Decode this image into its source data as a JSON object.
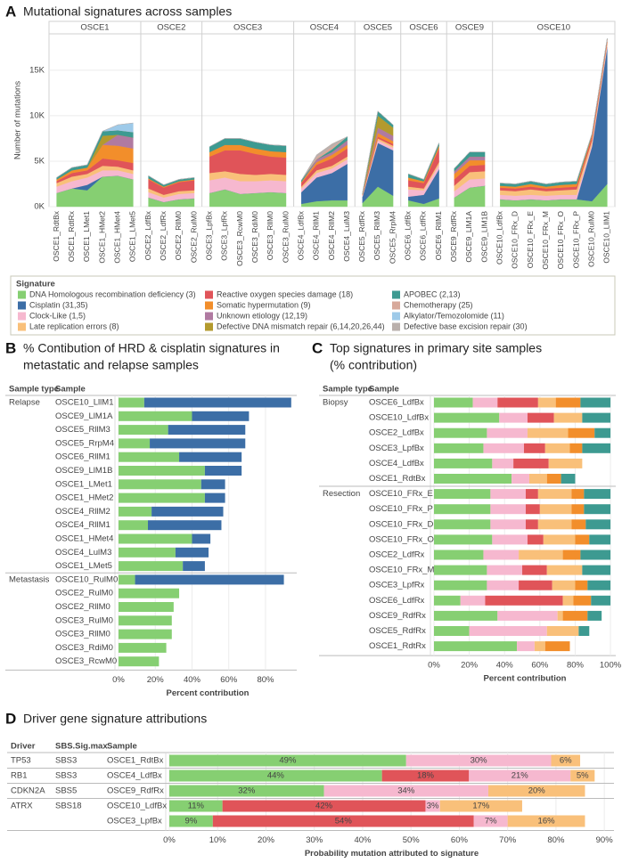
{
  "chart_data": [
    {
      "type": "area",
      "panel": "A",
      "title": "Mutational signatures across samples",
      "ylabel": "Number of mutations",
      "facets": [
        "OSCE1",
        "OSCE2",
        "OSCE3",
        "OSCE4",
        "OSCE5",
        "OSCE6",
        "OSCE9",
        "OSCE10"
      ],
      "categories": [
        "OSCE1_RdtBx",
        "OSCE1_RdtRx",
        "OSCE1_LMet1",
        "OSCE1_HMet2",
        "OSCE1_HMet4",
        "OSCE1_LMet5",
        "OSCE2_LdfBx",
        "OSCE2_LdfRx",
        "OSCE2_RllM0",
        "OSCE2_RulM0",
        "OSCE3_LpfBx",
        "OSCE3_LpfRx",
        "OSCE3_RcwM0",
        "OSCE3_RdiM0",
        "OSCE3_RllM0",
        "OSCE3_RulM0",
        "OSCE4_LdfBx",
        "OSCE4_RllM1",
        "OSCE4_RllM2",
        "OSCE4_LulM3",
        "OSCE5_RdfRx",
        "OSCE5_RllM3",
        "OSCE5_RrpM4",
        "OSCE6_LdfBx",
        "OSCE6_LdfRx",
        "OSCE6_RllM1",
        "OSCE9_RdfRx",
        "OSCE9_LlM1A",
        "OSCE9_LlM1B",
        "OSCE10_LdfBx",
        "OSCE10_FRx_D",
        "OSCE10_FRx_E",
        "OSCE10_FRx_M",
        "OSCE10_FRx_O",
        "OSCE10_FRx_P",
        "OSCE10_RulM0",
        "OSCE10_LllM1"
      ],
      "legend_title": "Signature",
      "series": [
        {
          "name": "DNA Homologous recombination deficiency (3)",
          "color": "#86cf72",
          "values": [
            1500,
            2000,
            1800,
            3300,
            3400,
            3000,
            1000,
            500,
            800,
            900,
            1500,
            1900,
            1400,
            1500,
            1600,
            1500,
            300,
            600,
            700,
            700,
            400,
            2200,
            1200,
            700,
            300,
            900,
            1000,
            2100,
            2300,
            800,
            700,
            800,
            700,
            800,
            800,
            600,
            2500
          ]
        },
        {
          "name": "Cisplatin (31,35)",
          "color": "#3c6ea6",
          "values": [
            0,
            0,
            600,
            0,
            0,
            0,
            0,
            0,
            0,
            0,
            0,
            0,
            0,
            0,
            0,
            0,
            1300,
            2600,
            3000,
            4000,
            700,
            4800,
            5000,
            400,
            1000,
            3200,
            0,
            0,
            0,
            0,
            0,
            0,
            0,
            0,
            0,
            6000,
            15000
          ]
        },
        {
          "name": "Clock-Like (1,5)",
          "color": "#f6b8cf",
          "values": [
            700,
            800,
            800,
            700,
            600,
            600,
            600,
            500,
            600,
            600,
            1400,
            1300,
            1400,
            1300,
            1300,
            1300,
            400,
            500,
            500,
            500,
            100,
            300,
            300,
            800,
            500,
            500,
            700,
            900,
            800,
            500,
            500,
            500,
            500,
            500,
            500,
            300,
            300
          ]
        },
        {
          "name": "Late replication errors (8)",
          "color": "#f9c07a",
          "values": [
            400,
            500,
            400,
            500,
            400,
            400,
            400,
            300,
            300,
            300,
            800,
            700,
            800,
            700,
            700,
            700,
            200,
            300,
            300,
            300,
            100,
            200,
            200,
            300,
            200,
            300,
            600,
            800,
            800,
            500,
            500,
            600,
            500,
            500,
            600,
            400,
            300
          ]
        },
        {
          "name": "Reactive oxygen species damage (18)",
          "color": "#e05459",
          "values": [
            200,
            400,
            400,
            800,
            700,
            800,
            1000,
            800,
            1000,
            1100,
            1800,
            2300,
            2600,
            2300,
            1900,
            1900,
            400,
            600,
            800,
            900,
            100,
            200,
            200,
            700,
            600,
            1500,
            700,
            700,
            700,
            300,
            300,
            300,
            300,
            300,
            300,
            400,
            200
          ]
        },
        {
          "name": "Somatic hypermutation (9)",
          "color": "#f28e2b",
          "values": [
            200,
            300,
            300,
            1500,
            1600,
            1600,
            100,
            100,
            100,
            100,
            500,
            600,
            600,
            600,
            600,
            600,
            100,
            300,
            400,
            400,
            0,
            400,
            300,
            300,
            200,
            300,
            600,
            600,
            500,
            200,
            200,
            300,
            200,
            300,
            300,
            200,
            100
          ]
        },
        {
          "name": "Unknown etiology (12,19)",
          "color": "#b07aa1",
          "values": [
            0,
            0,
            0,
            0,
            1200,
            1200,
            0,
            0,
            0,
            0,
            0,
            0,
            0,
            0,
            0,
            0,
            0,
            300,
            300,
            500,
            0,
            600,
            600,
            0,
            0,
            0,
            300,
            400,
            400,
            0,
            0,
            0,
            0,
            0,
            0,
            0,
            0
          ]
        },
        {
          "name": "Defective DNA mismatch repair (6,14,20,26,44)",
          "color": "#b39a2e",
          "values": [
            0,
            0,
            0,
            1000,
            0,
            0,
            0,
            0,
            0,
            0,
            0,
            0,
            0,
            0,
            0,
            0,
            0,
            0,
            0,
            0,
            0,
            1300,
            900,
            0,
            0,
            0,
            0,
            0,
            0,
            0,
            0,
            0,
            0,
            0,
            0,
            0,
            0
          ]
        },
        {
          "name": "APOBEC (2,13)",
          "color": "#3d9a91",
          "values": [
            200,
            300,
            300,
            500,
            500,
            600,
            300,
            200,
            200,
            200,
            600,
            700,
            700,
            700,
            700,
            700,
            200,
            0,
            300,
            400,
            100,
            500,
            300,
            400,
            200,
            300,
            300,
            500,
            500,
            300,
            300,
            300,
            300,
            300,
            300,
            100,
            100
          ]
        },
        {
          "name": "Chemotherapy (25)",
          "color": "#d7a99b",
          "values": [
            0,
            0,
            0,
            0,
            0,
            0,
            0,
            0,
            0,
            0,
            0,
            0,
            0,
            0,
            0,
            0,
            0,
            300,
            300,
            0,
            0,
            0,
            0,
            0,
            0,
            0,
            0,
            0,
            0,
            0,
            0,
            0,
            0,
            0,
            0,
            0,
            0
          ]
        },
        {
          "name": "Alkylator/Temozolomide (11)",
          "color": "#9ecae9",
          "values": [
            0,
            0,
            0,
            0,
            600,
            1000,
            0,
            0,
            0,
            0,
            0,
            0,
            0,
            0,
            0,
            0,
            0,
            0,
            0,
            0,
            0,
            0,
            0,
            0,
            0,
            0,
            0,
            0,
            0,
            0,
            0,
            0,
            0,
            0,
            0,
            0,
            0
          ]
        },
        {
          "name": "Defective base excision repair (30)",
          "color": "#bab0ac",
          "values": [
            0,
            0,
            0,
            0,
            0,
            0,
            0,
            0,
            0,
            0,
            0,
            0,
            0,
            0,
            0,
            0,
            0,
            200,
            300,
            0,
            0,
            0,
            0,
            0,
            0,
            0,
            0,
            0,
            0,
            0,
            0,
            0,
            0,
            0,
            0,
            0,
            0
          ]
        }
      ],
      "ylim": [
        0,
        19000
      ],
      "yticks": [
        {
          "value": 0,
          "label": "0K"
        },
        {
          "value": 5000,
          "label": "5K"
        },
        {
          "value": 10000,
          "label": "10K"
        },
        {
          "value": 15000,
          "label": "15K"
        }
      ],
      "grid": true
    },
    {
      "type": "hbar",
      "panel": "B",
      "title": [
        "% Contibution of HRD & cisplatin signatures in",
        "metastatic and relapse samples"
      ],
      "column_headers": [
        "Sample type",
        "Sample"
      ],
      "sample_type": [
        "Relapse",
        null,
        null,
        null,
        null,
        null,
        null,
        null,
        null,
        null,
        null,
        null,
        null,
        "Metastasis",
        null,
        null,
        null,
        null,
        null,
        null
      ],
      "categories": [
        "OSCE10_LllM1",
        "OSCE9_LlM1A",
        "OSCE5_RllM3",
        "OSCE5_RrpM4",
        "OSCE6_RllM1",
        "OSCE9_LlM1B",
        "OSCE1_LMet1",
        "OSCE1_HMet2",
        "OSCE4_RllM2",
        "OSCE4_RllM1",
        "OSCE1_HMet4",
        "OSCE4_LulM3",
        "OSCE1_LMet5",
        "OSCE10_RulM0",
        "OSCE2_RulM0",
        "OSCE2_RllM0",
        "OSCE3_RulM0",
        "OSCE3_RllM0",
        "OSCE3_RdiM0",
        "OSCE3_RcwM0"
      ],
      "series": [
        {
          "color": "#86cf72",
          "values": [
            14,
            40,
            27,
            17,
            33,
            47,
            45,
            47,
            18,
            16,
            40,
            31,
            35,
            9,
            33,
            30,
            29,
            29,
            26,
            22
          ]
        },
        {
          "color": "#3c6ea6",
          "values": [
            80,
            31,
            42,
            52,
            34,
            20,
            13,
            11,
            39,
            40,
            10,
            18,
            12,
            81,
            0,
            0,
            0,
            0,
            0,
            0
          ]
        }
      ],
      "xlim": [
        0,
        97
      ],
      "xticks": [
        {
          "value": 0,
          "label": "0%"
        },
        {
          "value": 20,
          "label": "20%"
        },
        {
          "value": 40,
          "label": "40%"
        },
        {
          "value": 60,
          "label": "60%"
        },
        {
          "value": 80,
          "label": "80%"
        }
      ],
      "xlabel": "Percent contribution",
      "grid": true
    },
    {
      "type": "hbar",
      "panel": "C",
      "title": [
        "Top signatures in primary site samples",
        "(% contribution)"
      ],
      "column_headers": [
        "Sample type",
        "Sample"
      ],
      "sample_type": [
        "Biopsy",
        null,
        null,
        null,
        null,
        null,
        "Resection",
        null,
        null,
        null,
        null,
        null,
        null,
        null,
        null,
        null,
        null
      ],
      "categories": [
        "OSCE6_LdfBx",
        "OSCE10_LdfBx",
        "OSCE2_LdfBx",
        "OSCE3_LpfBx",
        "OSCE4_LdfBx",
        "OSCE1_RdtBx",
        "OSCE10_FRx_E",
        "OSCE10_FRx_P",
        "OSCE10_FRx_D",
        "OSCE10_FRx_O",
        "OSCE2_LdfRx",
        "OSCE10_FRx_M",
        "OSCE3_LpfRx",
        "OSCE6_LdfRx",
        "OSCE9_RdfRx",
        "OSCE5_RdfRx",
        "OSCE1_RdtRx"
      ],
      "series": [
        {
          "color": "#86cf72",
          "values": [
            22,
            37,
            30,
            28,
            33,
            44,
            32,
            32,
            32,
            33,
            28,
            30,
            30,
            15,
            36,
            20,
            47
          ]
        },
        {
          "color": "#f6b8cf",
          "values": [
            14,
            16,
            23,
            23,
            12,
            10,
            20,
            20,
            20,
            20,
            20,
            20,
            18,
            14,
            34,
            44,
            10
          ]
        },
        {
          "color": "#e05459",
          "values": [
            23,
            15,
            0,
            12,
            20,
            0,
            7,
            8,
            7,
            9,
            0,
            14,
            19,
            44,
            0,
            0,
            0
          ]
        },
        {
          "color": "#f9c07a",
          "values": [
            10,
            16,
            23,
            14,
            19,
            10,
            19,
            18,
            19,
            18,
            25,
            20,
            13,
            6,
            3,
            18,
            6
          ]
        },
        {
          "color": "#f28e2b",
          "values": [
            14,
            0,
            15,
            7,
            0,
            8,
            7,
            7,
            8,
            8,
            10,
            0,
            7,
            10,
            14,
            0,
            14
          ]
        },
        {
          "color": "#3d9a91",
          "values": [
            17,
            16,
            9,
            16,
            0,
            8,
            15,
            15,
            14,
            12,
            17,
            16,
            13,
            11,
            8,
            6,
            0
          ]
        }
      ],
      "xlim": [
        0,
        103
      ],
      "xticks": [
        {
          "value": 0,
          "label": "0%"
        },
        {
          "value": 20,
          "label": "20%"
        },
        {
          "value": 40,
          "label": "40%"
        },
        {
          "value": 60,
          "label": "60%"
        },
        {
          "value": 80,
          "label": "80%"
        },
        {
          "value": 100,
          "label": "100%"
        }
      ],
      "xlabel": "Percent contribution",
      "grid": true
    },
    {
      "type": "hbar",
      "panel": "D",
      "title": [
        "Driver gene signature attributions"
      ],
      "column_headers": [
        "Driver",
        "SBS.Sig.max",
        "Sample"
      ],
      "driver": [
        "TP53",
        "RB1",
        "CDKN2A",
        "ATRX",
        null
      ],
      "sbs_sig_max": [
        "SBS3",
        "SBS3",
        "SBS5",
        "SBS18",
        null
      ],
      "categories": [
        "OSCE1_RdtBx",
        "OSCE4_LdfBx",
        "OSCE9_RdfRx",
        "OSCE10_LdfBx",
        "OSCE3_LpfBx"
      ],
      "series": [
        {
          "color": "#86cf72",
          "values": [
            49,
            44,
            32,
            11,
            9
          ],
          "value_labels": [
            "49%",
            "44%",
            "32%",
            "11%",
            "9%"
          ]
        },
        {
          "color": "#e05459",
          "values": [
            null,
            18,
            null,
            42,
            54
          ],
          "value_labels": [
            null,
            "18%",
            null,
            "42%",
            "54%"
          ]
        },
        {
          "color": "#f6b8cf",
          "values": [
            30,
            21,
            34,
            3,
            7
          ],
          "value_labels": [
            "30%",
            "21%",
            "34%",
            "3%",
            "7%"
          ]
        },
        {
          "color": "#f9c07a",
          "values": [
            6,
            5,
            20,
            17,
            16
          ],
          "value_labels": [
            "6%",
            "5%",
            "20%",
            "17%",
            "16%"
          ]
        }
      ],
      "xlim": [
        0,
        92
      ],
      "xticks": [
        {
          "value": 0,
          "label": "0%"
        },
        {
          "value": 10,
          "label": "10%"
        },
        {
          "value": 20,
          "label": "20%"
        },
        {
          "value": 30,
          "label": "30%"
        },
        {
          "value": 40,
          "label": "40%"
        },
        {
          "value": 50,
          "label": "50%"
        },
        {
          "value": 60,
          "label": "60%"
        },
        {
          "value": 70,
          "label": "70%"
        },
        {
          "value": 80,
          "label": "80%"
        },
        {
          "value": 90,
          "label": "90%"
        }
      ],
      "xlabel": "Probability mutation attributed to signature",
      "grid": true
    }
  ]
}
